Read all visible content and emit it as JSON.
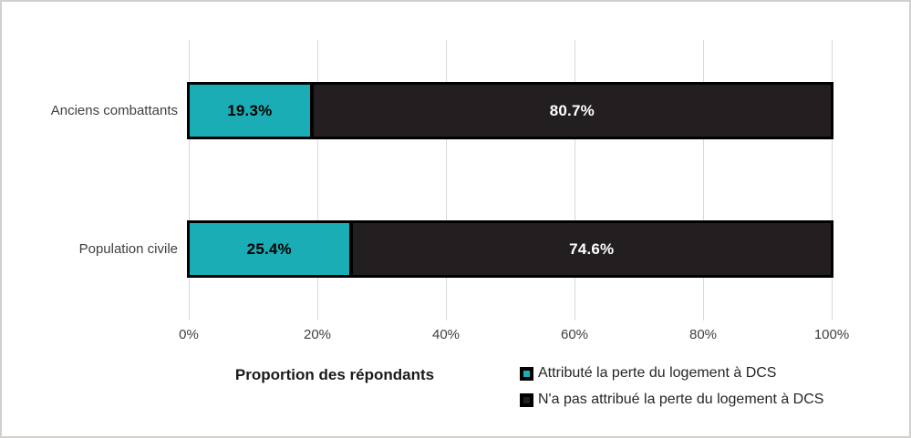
{
  "chart_data": {
    "type": "bar",
    "orientation": "horizontal",
    "stacked": true,
    "categories": [
      "Anciens combattants",
      "Population civile"
    ],
    "series": [
      {
        "name": "Attributé la perte du logement à DCS",
        "color": "#1badb5",
        "values": [
          19.3,
          25.4
        ],
        "labels": [
          "19.3%",
          "25.4%"
        ]
      },
      {
        "name": "N'a pas attribué la perte du logement à DCS",
        "color": "#231f20",
        "values": [
          80.7,
          74.6
        ],
        "labels": [
          "80.7%",
          "74.6%"
        ]
      }
    ],
    "xlabel": "Proportion des répondants",
    "x_ticks": [
      "0%",
      "20%",
      "40%",
      "60%",
      "80%",
      "100%"
    ],
    "xlim": [
      0,
      100
    ],
    "grid": "vertical",
    "gridline_color": "#d9d9d9",
    "legend_position": "bottom-right",
    "bar_border_color": "#000000"
  }
}
